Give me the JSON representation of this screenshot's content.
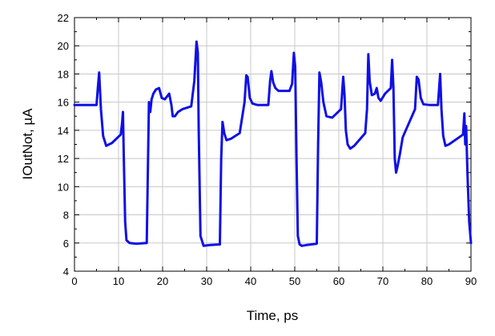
{
  "chart_data": {
    "type": "line",
    "title": "",
    "xlabel": "Time, ps",
    "ylabel": "IOutNot, µA",
    "xlim": [
      0,
      90
    ],
    "ylim": [
      4,
      22
    ],
    "x_ticks": [
      0,
      10,
      20,
      30,
      40,
      50,
      60,
      70,
      80,
      90
    ],
    "y_ticks": [
      4,
      6,
      8,
      10,
      12,
      14,
      16,
      18,
      20,
      22
    ],
    "grid": true,
    "series": [
      {
        "color": "#1010e6",
        "x": [
          0,
          5.0,
          5.3,
          5.6,
          6.0,
          6.5,
          7.2,
          8.5,
          10.5,
          10.8,
          11.0,
          11.2,
          11.5,
          11.8,
          12.5,
          14,
          16.4,
          16.6,
          16.9,
          17.2,
          17.5,
          17.9,
          18.5,
          19.2,
          19.8,
          20.5,
          21.5,
          22.0,
          22.3,
          22.8,
          23.5,
          24.5,
          26.5,
          27.2,
          27.7,
          28.0,
          28.2,
          28.6,
          29.3,
          30.5,
          33.0,
          33.3,
          33.6,
          34.0,
          34.5,
          35.5,
          37.5,
          38.6,
          39.0,
          39.3,
          39.8,
          40.4,
          41.5,
          44.0,
          44.4,
          44.7,
          45.1,
          45.6,
          46.3,
          48.8,
          49.4,
          49.8,
          50.1,
          50.4,
          50.7,
          51.1,
          51.6,
          52.5,
          55.0,
          55.3,
          55.6,
          56.0,
          56.5,
          57.2,
          58.5,
          60.5,
          61.0,
          61.3,
          61.6,
          62.0,
          62.6,
          63.5,
          66.0,
          66.4,
          66.7,
          67.0,
          67.5,
          68.2,
          68.6,
          69.0,
          69.5,
          70.5,
          71.8,
          72.1,
          72.4,
          72.7,
          73.0,
          73.3,
          73.8,
          74.5,
          77.3,
          77.7,
          78.1,
          78.6,
          79.2,
          80.5,
          82.5,
          83.0,
          83.3,
          83.7,
          84.2,
          85.0,
          88.2,
          88.5,
          88.7,
          88.9,
          89.2,
          89.6,
          90.0
        ],
        "y": [
          15.8,
          15.8,
          17.0,
          18.1,
          15.5,
          13.6,
          12.9,
          13.1,
          13.7,
          14.5,
          15.3,
          12.0,
          7.5,
          6.2,
          6.0,
          5.95,
          6.0,
          10.0,
          16.0,
          15.3,
          16.2,
          16.6,
          16.9,
          17.0,
          16.3,
          16.2,
          16.6,
          15.8,
          15.0,
          15.0,
          15.3,
          15.5,
          15.7,
          17.5,
          20.3,
          19.5,
          14.0,
          6.5,
          5.8,
          5.85,
          5.9,
          12.0,
          14.6,
          13.8,
          13.3,
          13.4,
          13.8,
          16.0,
          17.9,
          17.8,
          16.3,
          15.9,
          15.8,
          15.8,
          17.5,
          18.2,
          17.4,
          17.0,
          16.8,
          16.8,
          17.3,
          19.5,
          18.5,
          12.0,
          6.5,
          5.9,
          5.8,
          5.85,
          5.95,
          13.0,
          18.1,
          17.4,
          16.0,
          15.0,
          14.9,
          15.5,
          17.8,
          16.5,
          14.0,
          13.0,
          12.7,
          12.9,
          13.8,
          15.5,
          19.4,
          17.5,
          16.5,
          16.6,
          17.0,
          16.3,
          16.1,
          16.6,
          17.0,
          19.0,
          17.0,
          12.0,
          11.0,
          11.4,
          12.2,
          13.5,
          15.5,
          17.8,
          17.6,
          16.3,
          15.85,
          15.8,
          15.8,
          18.0,
          15.5,
          13.6,
          12.9,
          13.0,
          13.7,
          15.2,
          13.0,
          14.3,
          11.0,
          7.5,
          6.0
        ]
      }
    ]
  }
}
